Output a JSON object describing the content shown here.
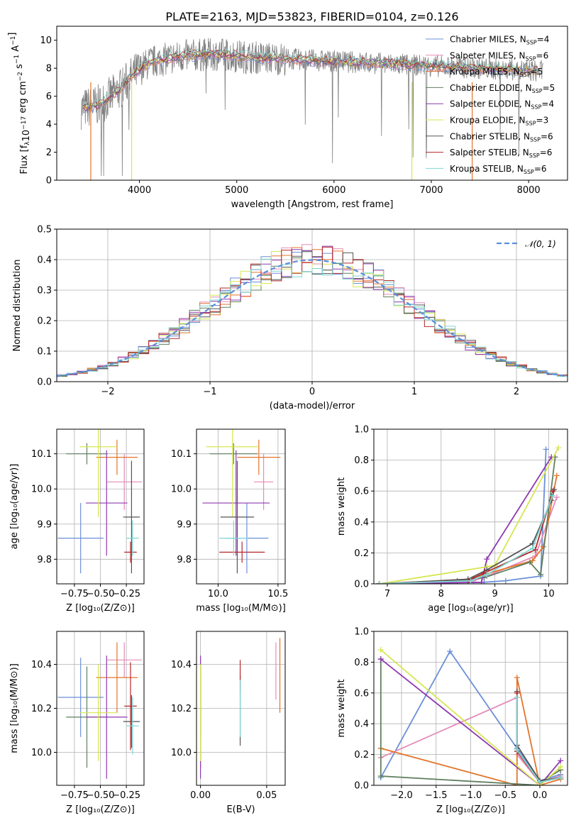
{
  "figure": {
    "title": "PLATE=2163, MJD=53823, FIBERID=0104, z=0.126"
  },
  "legend_spectrum": [
    {
      "label": "Chabrier MILES, N",
      "sub": "SSP",
      "tail": "=4",
      "color": "#6a8fd8"
    },
    {
      "label": "Salpeter MILES, N",
      "sub": "SSP",
      "tail": "=6",
      "color": "#e58bb8"
    },
    {
      "label": "Kroupa MILES, N",
      "sub": "SSP",
      "tail": "=5",
      "color": "#e3742b"
    },
    {
      "label": "Chabrier ELODIE, N",
      "sub": "SSP",
      "tail": "=5",
      "color": "#5f7f5f"
    },
    {
      "label": "Salpeter ELODIE, N",
      "sub": "SSP",
      "tail": "=4",
      "color": "#8e3ab0"
    },
    {
      "label": "Kroupa ELODIE, N",
      "sub": "SSP",
      "tail": "=3",
      "color": "#d6e650"
    },
    {
      "label": "Chabrier STELIB, N",
      "sub": "SSP",
      "tail": "=6",
      "color": "#555555"
    },
    {
      "label": "Salpeter STELIB, N",
      "sub": "SSP",
      "tail": "=6",
      "color": "#b5282a"
    },
    {
      "label": "Kroupa STELIB, N",
      "sub": "SSP",
      "tail": "=6",
      "color": "#7fd6d6"
    }
  ],
  "legend_residual": {
    "label": "𝒩(0, 1)",
    "color": "#5b8fd9"
  },
  "chart_data": [
    {
      "id": "spectrum",
      "type": "line",
      "xlabel": "wavelength [Angstrom, rest frame]",
      "ylabel_main": "Flux [f",
      "ylabel_sub1": "λ",
      "ylabel_mid": "10",
      "ylabel_sup1": "−17",
      "ylabel_tail": " erg cm",
      "ylabel_sup2": "−2",
      "ylabel_tail2": " s",
      "ylabel_sup3": "−1",
      "ylabel_tail3": " A",
      "ylabel_sup4": "−1",
      "ylabel_end": "]",
      "xlim": [
        3150,
        8400
      ],
      "ylim": [
        0,
        11
      ],
      "xticks": [
        "4000",
        "5000",
        "6000",
        "7000",
        "8000"
      ],
      "xtick_values": [
        4000,
        5000,
        6000,
        7000,
        8000
      ],
      "yticks": [
        "0",
        "2",
        "4",
        "6",
        "8",
        "10"
      ],
      "ytick_values": [
        0,
        2,
        4,
        6,
        8,
        10
      ],
      "continuum": {
        "x": [
          3400,
          3600,
          3800,
          3950,
          4100,
          4300,
          4500,
          4800,
          5100,
          5400,
          5700,
          6000,
          6300,
          6600,
          6900,
          7200,
          7500,
          7800,
          8100
        ],
        "y": [
          5.1,
          5.4,
          6.5,
          7.6,
          8.4,
          8.7,
          8.9,
          9.0,
          8.8,
          8.7,
          8.6,
          8.5,
          8.4,
          8.3,
          8.2,
          8.1,
          8.0,
          7.9,
          7.8
        ]
      },
      "drops": [
        {
          "x": 3500,
          "color": "#e3742b"
        },
        {
          "x": 3920,
          "color": "#d6e650"
        },
        {
          "x": 6800,
          "color": "#d6e650"
        },
        {
          "x": 7420,
          "color": "#e3742b"
        }
      ]
    },
    {
      "id": "residuals",
      "type": "histogram",
      "xlabel": "(data-model)/error",
      "ylabel": "Normed distribution",
      "xlim": [
        -2.5,
        2.5
      ],
      "ylim": [
        0,
        0.5
      ],
      "xticks": [
        "−2",
        "−1",
        "0",
        "1",
        "2"
      ],
      "xtick_values": [
        -2,
        -1,
        0,
        1,
        2
      ],
      "yticks": [
        "0.0",
        "0.1",
        "0.2",
        "0.3",
        "0.4",
        "0.5"
      ],
      "ytick_values": [
        0,
        0.1,
        0.2,
        0.3,
        0.4,
        0.5
      ],
      "bin_width": 0.1,
      "grid": true
    },
    {
      "id": "age-vs-Z",
      "type": "errorbar",
      "xlabel": "Z [log₁₀(Z/Z⊙)]",
      "ylabel": "age  [log₁₀(age/yr)]",
      "xlim": [
        -0.92,
        -0.08
      ],
      "ylim": [
        9.73,
        10.17
      ],
      "xticks": [
        "−0.75",
        "−0.50",
        "−0.25"
      ],
      "xtick_values": [
        -0.75,
        -0.5,
        -0.25
      ],
      "yticks": [
        "9.8",
        "9.9",
        "10.0",
        "10.1"
      ],
      "ytick_values": [
        9.8,
        9.9,
        10.0,
        10.1
      ],
      "points": [
        {
          "x": -0.69,
          "y": 9.86,
          "xerr": 0.22,
          "yerr": 0.1,
          "color": "#6a8fd8"
        },
        {
          "x": -0.27,
          "y": 10.02,
          "xerr": 0.17,
          "yerr": 0.08,
          "color": "#e58bb8"
        },
        {
          "x": -0.34,
          "y": 10.09,
          "xerr": 0.2,
          "yerr": 0.05,
          "color": "#e3742b"
        },
        {
          "x": -0.63,
          "y": 10.1,
          "xerr": 0.2,
          "yerr": 0.03,
          "color": "#5f7f5f"
        },
        {
          "x": -0.44,
          "y": 9.96,
          "xerr": 0.2,
          "yerr": 0.15,
          "color": "#8e3ab0"
        },
        {
          "x": -0.52,
          "y": 10.12,
          "xerr": 0.18,
          "yerr": 0.2,
          "color": "#d6e650"
        },
        {
          "x": -0.2,
          "y": 9.92,
          "xerr": 0.08,
          "yerr": 0.16,
          "color": "#555555"
        },
        {
          "x": -0.21,
          "y": 9.82,
          "xerr": 0.06,
          "yerr": 0.03,
          "color": "#b5282a"
        },
        {
          "x": -0.19,
          "y": 9.86,
          "xerr": 0.06,
          "yerr": 0.05,
          "color": "#7fd6d6"
        }
      ]
    },
    {
      "id": "age-vs-mass",
      "type": "errorbar",
      "xlabel": "mass [log₁₀(M/M⊙)]",
      "ylabel": "",
      "xlim": [
        9.82,
        10.56
      ],
      "ylim": [
        9.73,
        10.17
      ],
      "xticks": [
        "10.0",
        "10.5"
      ],
      "xtick_values": [
        10.0,
        10.5
      ],
      "yticks": [
        "9.8",
        "9.9",
        "10.0",
        "10.1"
      ],
      "ytick_values": [
        9.8,
        9.9,
        10.0,
        10.1
      ],
      "points": [
        {
          "x": 10.24,
          "y": 9.86,
          "xerr": 0.18,
          "yerr": 0.1,
          "color": "#6a8fd8"
        },
        {
          "x": 10.38,
          "y": 10.02,
          "xerr": 0.08,
          "yerr": 0.08,
          "color": "#e58bb8"
        },
        {
          "x": 10.34,
          "y": 10.09,
          "xerr": 0.18,
          "yerr": 0.05,
          "color": "#e3742b"
        },
        {
          "x": 10.13,
          "y": 10.1,
          "xerr": 0.2,
          "yerr": 0.03,
          "color": "#5f7f5f"
        },
        {
          "x": 10.15,
          "y": 9.96,
          "xerr": 0.28,
          "yerr": 0.15,
          "color": "#8e3ab0"
        },
        {
          "x": 10.12,
          "y": 10.12,
          "xerr": 0.22,
          "yerr": 0.2,
          "color": "#d6e650"
        },
        {
          "x": 10.16,
          "y": 9.92,
          "xerr": 0.14,
          "yerr": 0.16,
          "color": "#555555"
        },
        {
          "x": 10.2,
          "y": 9.82,
          "xerr": 0.19,
          "yerr": 0.03,
          "color": "#b5282a"
        },
        {
          "x": 10.13,
          "y": 9.86,
          "xerr": 0.12,
          "yerr": 0.05,
          "color": "#7fd6d6"
        }
      ]
    },
    {
      "id": "massweight-vs-age",
      "type": "line",
      "xlabel": "age  [log₁₀(age/yr)]",
      "ylabel": "mass weight",
      "xlim": [
        6.75,
        10.35
      ],
      "ylim": [
        0,
        1
      ],
      "xticks": [
        "7",
        "8",
        "9",
        "10"
      ],
      "xtick_values": [
        7,
        8,
        9,
        10
      ],
      "yticks": [
        "0.0",
        "0.2",
        "0.4",
        "0.6",
        "0.8",
        "1.0"
      ],
      "ytick_values": [
        0,
        0.2,
        0.4,
        0.6,
        0.8,
        1.0
      ],
      "series": [
        {
          "x": [
            6.85,
            8.8,
            9.2,
            9.85,
            9.95
          ],
          "y": [
            0.0,
            0.01,
            0.02,
            0.05,
            0.87
          ],
          "color": "#6a8fd8"
        },
        {
          "x": [
            6.85,
            8.6,
            8.85,
            9.75,
            10.15
          ],
          "y": [
            0.0,
            0.02,
            0.05,
            0.18,
            0.56
          ],
          "color": "#e58bb8"
        },
        {
          "x": [
            6.85,
            8.5,
            8.8,
            9.7,
            9.9,
            10.15
          ],
          "y": [
            0.0,
            0.03,
            0.06,
            0.15,
            0.24,
            0.7
          ],
          "color": "#e3742b"
        },
        {
          "x": [
            6.85,
            8.3,
            8.8,
            9.65,
            9.85,
            10.12
          ],
          "y": [
            0.0,
            0.02,
            0.04,
            0.14,
            0.06,
            0.82
          ],
          "color": "#5f7f5f"
        },
        {
          "x": [
            6.85,
            8.75,
            8.85,
            10.05
          ],
          "y": [
            0.0,
            0.01,
            0.16,
            0.82
          ],
          "color": "#8e3ab0"
        },
        {
          "x": [
            6.85,
            8.85,
            9.0,
            10.18
          ],
          "y": [
            0.0,
            0.11,
            0.12,
            0.88
          ],
          "color": "#d6e650"
        },
        {
          "x": [
            6.85,
            8.5,
            8.85,
            9.7,
            10.05,
            10.1
          ],
          "y": [
            0.0,
            0.03,
            0.09,
            0.26,
            0.54,
            0.61
          ],
          "color": "#555555"
        },
        {
          "x": [
            6.85,
            8.5,
            8.8,
            9.75,
            10.08
          ],
          "y": [
            0.0,
            0.02,
            0.07,
            0.22,
            0.6
          ],
          "color": "#b5282a"
        },
        {
          "x": [
            6.85,
            8.55,
            8.85,
            9.7,
            10.07
          ],
          "y": [
            0.0,
            0.02,
            0.06,
            0.23,
            0.57
          ],
          "color": "#7fd6d6"
        }
      ]
    },
    {
      "id": "mass-vs-Z",
      "type": "errorbar",
      "xlabel": "Z [log₁₀(Z/Z⊙)]",
      "ylabel": "mass [log₁₀(M/M⊙)]",
      "xlim": [
        -0.92,
        -0.08
      ],
      "ylim": [
        9.85,
        10.55
      ],
      "xticks": [
        "−0.75",
        "−0.50",
        "−0.25"
      ],
      "xtick_values": [
        -0.75,
        -0.5,
        -0.25
      ],
      "yticks": [
        "10.0",
        "10.2",
        "10.4"
      ],
      "ytick_values": [
        10.0,
        10.2,
        10.4
      ],
      "points": [
        {
          "x": -0.69,
          "y": 10.25,
          "xerr": 0.22,
          "yerr": 0.18,
          "color": "#6a8fd8"
        },
        {
          "x": -0.27,
          "y": 10.42,
          "xerr": 0.17,
          "yerr": 0.08,
          "color": "#e58bb8"
        },
        {
          "x": -0.34,
          "y": 10.34,
          "xerr": 0.2,
          "yerr": 0.16,
          "color": "#e3742b"
        },
        {
          "x": -0.63,
          "y": 10.16,
          "xerr": 0.2,
          "yerr": 0.23,
          "color": "#5f7f5f"
        },
        {
          "x": -0.44,
          "y": 10.16,
          "xerr": 0.2,
          "yerr": 0.28,
          "color": "#8e3ab0"
        },
        {
          "x": -0.52,
          "y": 10.18,
          "xerr": 0.18,
          "yerr": 0.22,
          "color": "#d6e650"
        },
        {
          "x": -0.2,
          "y": 10.14,
          "xerr": 0.08,
          "yerr": 0.12,
          "color": "#555555"
        },
        {
          "x": -0.21,
          "y": 10.21,
          "xerr": 0.06,
          "yerr": 0.2,
          "color": "#b5282a"
        },
        {
          "x": -0.19,
          "y": 10.12,
          "xerr": 0.06,
          "yerr": 0.13,
          "color": "#7fd6d6"
        }
      ]
    },
    {
      "id": "mass-vs-ebv",
      "type": "errorbar",
      "xlabel": "E(B-V)",
      "ylabel": "",
      "xlim": [
        -0.003,
        0.064
      ],
      "ylim": [
        9.85,
        10.55
      ],
      "xticks": [
        "0.00",
        "0.05"
      ],
      "xtick_values": [
        0,
        0.05
      ],
      "yticks": [
        "10.0",
        "10.2",
        "10.4"
      ],
      "ytick_values": [
        10.0,
        10.2,
        10.4
      ],
      "points": [
        {
          "x": 0.0,
          "y": 10.25,
          "xerr": 0,
          "yerr": 0.18,
          "color": "#6a8fd8"
        },
        {
          "x": 0.057,
          "y": 10.37,
          "xerr": 0,
          "yerr": 0.13,
          "color": "#e58bb8"
        },
        {
          "x": 0.06,
          "y": 10.35,
          "xerr": 0,
          "yerr": 0.17,
          "color": "#e3742b"
        },
        {
          "x": 0.0,
          "y": 10.16,
          "xerr": 0,
          "yerr": 0.23,
          "color": "#5f7f5f"
        },
        {
          "x": 0.0,
          "y": 10.16,
          "xerr": 0,
          "yerr": 0.28,
          "color": "#8e3ab0"
        },
        {
          "x": 0.0,
          "y": 10.18,
          "xerr": 0,
          "yerr": 0.22,
          "color": "#d6e650"
        },
        {
          "x": 0.03,
          "y": 10.19,
          "xerr": 0,
          "yerr": 0.16,
          "color": "#555555"
        },
        {
          "x": 0.03,
          "y": 10.35,
          "xerr": 0,
          "yerr": 0.07,
          "color": "#b5282a"
        },
        {
          "x": 0.03,
          "y": 10.2,
          "xerr": 0,
          "yerr": 0.13,
          "color": "#7fd6d6"
        }
      ]
    },
    {
      "id": "massweight-vs-Z",
      "type": "line",
      "xlabel": "Z [log₁₀(Z/Z⊙)]",
      "ylabel": "mass weight",
      "xlim": [
        -2.4,
        0.4
      ],
      "ylim": [
        0,
        1
      ],
      "xticks": [
        "−2.0",
        "−1.5",
        "−1.0",
        "−0.5",
        "0.0"
      ],
      "xtick_values": [
        -2.0,
        -1.5,
        -1.0,
        -0.5,
        0.0
      ],
      "yticks": [
        "0.0",
        "0.2",
        "0.4",
        "0.6",
        "0.8",
        "1.0"
      ],
      "ytick_values": [
        0,
        0.2,
        0.4,
        0.6,
        0.8,
        1.0
      ],
      "series": [
        {
          "x": [
            -2.3,
            -1.3,
            -0.33,
            0.0,
            0.3
          ],
          "y": [
            0.05,
            0.87,
            0.24,
            0.03,
            0.07
          ],
          "color": "#6a8fd8"
        },
        {
          "x": [
            -2.3,
            -0.33,
            -0.33,
            0.0,
            0.3
          ],
          "y": [
            0.18,
            0.57,
            0.2,
            0.02,
            0.06
          ],
          "color": "#e58bb8"
        },
        {
          "x": [
            -2.3,
            -0.33,
            -0.33,
            0.0,
            0.3
          ],
          "y": [
            0.24,
            0.0,
            0.7,
            0.0,
            0.04
          ],
          "color": "#e3742b"
        },
        {
          "x": [
            -2.3,
            -2.3,
            0.0,
            0.0,
            0.3
          ],
          "y": [
            0.82,
            0.06,
            0.0,
            0.02,
            0.1
          ],
          "color": "#5f7f5f"
        },
        {
          "x": [
            -2.3,
            0.0,
            0.3
          ],
          "y": [
            0.82,
            0.0,
            0.16
          ],
          "color": "#8e3ab0"
        },
        {
          "x": [
            -2.3,
            0.0,
            0.3
          ],
          "y": [
            0.88,
            0.0,
            0.12
          ],
          "color": "#d6e650"
        },
        {
          "x": [
            -0.33,
            -0.33,
            0.0,
            0.3
          ],
          "y": [
            0.61,
            0.26,
            0.03,
            0.05
          ],
          "color": "#555555"
        },
        {
          "x": [
            -0.33,
            -0.33,
            0.0,
            0.3
          ],
          "y": [
            0.6,
            0.22,
            0.02,
            0.05
          ],
          "color": "#b5282a"
        },
        {
          "x": [
            -0.33,
            -0.33,
            0.0,
            0.3
          ],
          "y": [
            0.57,
            0.23,
            0.02,
            0.05
          ],
          "color": "#7fd6d6"
        }
      ]
    }
  ]
}
